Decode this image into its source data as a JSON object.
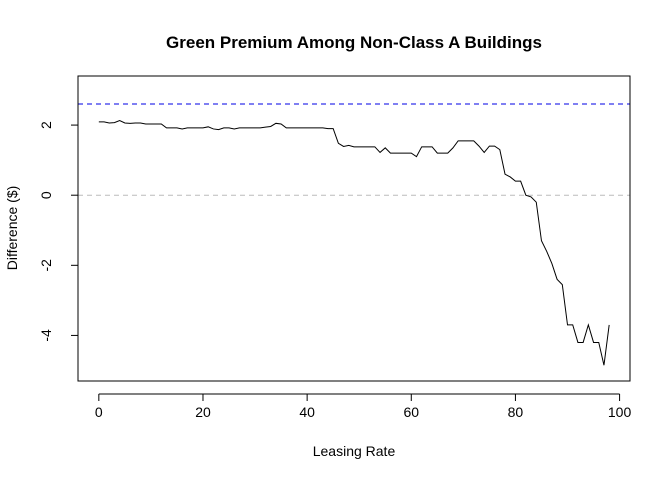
{
  "chart_data": {
    "type": "line",
    "title": "Green Premium Among Non-Class A Buildings",
    "xlabel": "Leasing Rate",
    "ylabel": "Difference ($)",
    "xlim": [
      -4,
      102
    ],
    "ylim": [
      -5.3,
      3.4
    ],
    "x_ticks": [
      0,
      20,
      40,
      60,
      80,
      100
    ],
    "y_ticks": [
      -4,
      -2,
      0,
      2
    ],
    "grid": false,
    "reference_lines": [
      {
        "y": 2.6,
        "color": "#5555ee",
        "style": "dashed"
      },
      {
        "y": 0,
        "color": "#bbbbbb",
        "style": "dashed"
      }
    ],
    "series": [
      {
        "color": "#000000",
        "x": [
          0,
          1,
          2,
          3,
          4,
          5,
          6,
          7,
          8,
          9,
          10,
          11,
          12,
          13,
          14,
          15,
          16,
          17,
          18,
          19,
          20,
          21,
          22,
          23,
          24,
          25,
          26,
          27,
          28,
          29,
          30,
          31,
          32,
          33,
          34,
          35,
          36,
          37,
          38,
          39,
          40,
          41,
          42,
          43,
          44,
          45,
          46,
          47,
          48,
          49,
          50,
          51,
          52,
          53,
          54,
          55,
          56,
          57,
          58,
          59,
          60,
          61,
          62,
          63,
          64,
          65,
          66,
          67,
          68,
          69,
          70,
          71,
          72,
          73,
          74,
          75,
          76,
          77,
          78,
          79,
          80,
          81,
          82,
          83,
          84,
          85,
          86,
          87,
          88,
          89,
          90,
          91,
          92,
          93,
          94,
          95,
          96,
          97,
          98
        ],
        "values": [
          2.09,
          2.09,
          2.06,
          2.07,
          2.13,
          2.06,
          2.05,
          2.06,
          2.06,
          2.03,
          2.03,
          2.03,
          2.03,
          1.92,
          1.92,
          1.92,
          1.89,
          1.92,
          1.92,
          1.92,
          1.92,
          1.95,
          1.89,
          1.87,
          1.92,
          1.92,
          1.89,
          1.92,
          1.92,
          1.92,
          1.92,
          1.92,
          1.94,
          1.96,
          2.05,
          2.03,
          1.92,
          1.92,
          1.92,
          1.92,
          1.92,
          1.92,
          1.92,
          1.92,
          1.9,
          1.9,
          1.48,
          1.39,
          1.42,
          1.38,
          1.38,
          1.38,
          1.38,
          1.38,
          1.22,
          1.35,
          1.2,
          1.2,
          1.2,
          1.2,
          1.2,
          1.1,
          1.38,
          1.38,
          1.38,
          1.2,
          1.2,
          1.2,
          1.35,
          1.55,
          1.55,
          1.55,
          1.55,
          1.4,
          1.22,
          1.4,
          1.4,
          1.3,
          0.6,
          0.52,
          0.4,
          0.4,
          0.0,
          -0.05,
          -0.2,
          -1.3,
          -1.6,
          -1.95,
          -2.4,
          -2.55,
          -3.7,
          -3.7,
          -4.2,
          -4.2,
          -3.7,
          -4.2,
          -4.2,
          -4.85,
          -3.7
        ]
      }
    ]
  }
}
